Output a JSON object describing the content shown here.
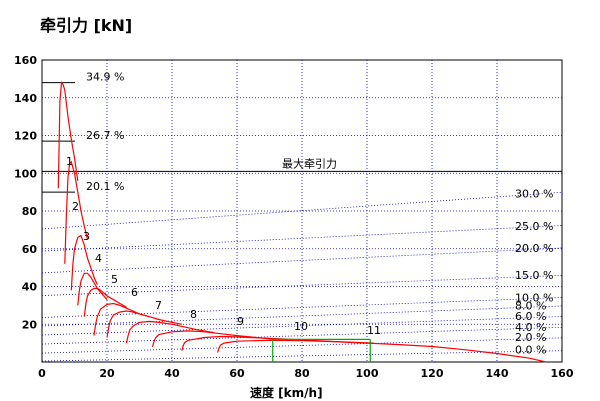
{
  "title": "牵引力 [kN]",
  "chart_data": {
    "type": "line",
    "title": "牵引力 [kN]",
    "xlabel": "速度 [km/h]",
    "ylabel": "",
    "xlim": [
      0,
      160
    ],
    "ylim": [
      0,
      160
    ],
    "x_ticks": [
      0,
      20,
      40,
      60,
      80,
      100,
      120,
      140,
      160
    ],
    "y_ticks": [
      20,
      40,
      60,
      80,
      100,
      120,
      140,
      160
    ],
    "grid": true,
    "grid_color": "#0000cc",
    "curve_color": "#ff0000",
    "green_color": "#00aa00",
    "max_traction": {
      "label": "最大牵引力",
      "value": 101
    },
    "slope_lines": [
      {
        "label": "30.0 %",
        "y_at_0": 70.5,
        "y_at_160": 89.9
      },
      {
        "label": "25.0 %",
        "y_at_0": 58.8,
        "y_at_160": 72.3
      },
      {
        "label": "20.0 %",
        "y_at_0": 47.2,
        "y_at_160": 60.4
      },
      {
        "label": "15.0 %",
        "y_at_0": 35.2,
        "y_at_160": 45.9
      },
      {
        "label": "10.0 %",
        "y_at_0": 23.6,
        "y_at_160": 34.2
      },
      {
        "label": "8.0 %",
        "y_at_0": 19.1,
        "y_at_160": 29.7
      },
      {
        "label": "6.0 %",
        "y_at_0": 14.3,
        "y_at_160": 24.1
      },
      {
        "label": "4.0 %",
        "y_at_0": 9.5,
        "y_at_160": 18.4
      },
      {
        "label": "2.0 %",
        "y_at_0": 4.7,
        "y_at_160": 12.8
      },
      {
        "label": "0.0 %",
        "y_at_0": 0.5,
        "y_at_160": 6.0
      }
    ],
    "startup_markers": [
      {
        "label": "34.9 %",
        "y": 148
      },
      {
        "label": "26.7 %",
        "y": 117
      },
      {
        "label": "20.1 %",
        "y": 90
      }
    ],
    "series": [
      {
        "name": "1",
        "x": [
          5.0,
          5.5,
          6.0,
          6.5,
          7.0,
          8.0,
          9.0,
          10.0,
          11.0
        ],
        "y": [
          92,
          138,
          148,
          147,
          144,
          130,
          118,
          108,
          96
        ]
      },
      {
        "name": "2",
        "x": [
          7.0,
          7.5,
          8.0,
          8.5,
          9.0,
          10.0,
          11.0,
          12.0,
          13.0,
          14.0
        ],
        "y": [
          52,
          78,
          98,
          105,
          106,
          100,
          90,
          80,
          72,
          65
        ]
      },
      {
        "name": "3",
        "x": [
          9.0,
          9.5,
          10.0,
          11.0,
          12.0,
          13.0,
          14.0,
          15.0,
          16.0,
          17.0
        ],
        "y": [
          38,
          52,
          60,
          66,
          67,
          62,
          55,
          50,
          45,
          41
        ]
      },
      {
        "name": "4",
        "x": [
          11.0,
          11.5,
          12.0,
          13.0,
          14.0,
          15.0,
          16.0,
          17.0,
          18.0,
          19.0,
          20.0
        ],
        "y": [
          30,
          38,
          43,
          47,
          47,
          45,
          42,
          39,
          37,
          35,
          33
        ]
      },
      {
        "name": "5",
        "x": [
          13.0,
          13.5,
          14.0,
          15.0,
          16.0,
          17.0,
          18.0,
          20.0,
          22.0,
          24.0,
          26.0
        ],
        "y": [
          24,
          31,
          35,
          38,
          39,
          39,
          38,
          35,
          33,
          31,
          29
        ]
      },
      {
        "name": "6",
        "x": [
          16.0,
          16.5,
          17.0,
          18.0,
          20.0,
          22.0,
          24.0,
          26.0,
          28.0,
          30.0,
          33.0
        ],
        "y": [
          14,
          20,
          24,
          28,
          30.5,
          31,
          30,
          28.5,
          27,
          25.5,
          24
        ]
      },
      {
        "name": "7",
        "x": [
          20.0,
          20.5,
          21.0,
          22.0,
          24.0,
          26.0,
          28.0,
          30.0,
          33.0,
          36.0,
          40.0,
          43.0
        ],
        "y": [
          13,
          18,
          22,
          25,
          26.5,
          27,
          26.5,
          25.5,
          24,
          22.5,
          21,
          20
        ]
      },
      {
        "name": "8",
        "x": [
          26.0,
          26.5,
          27.0,
          28.0,
          30.0,
          33.0,
          36.0,
          40.0,
          44.0,
          48.0,
          53.0
        ],
        "y": [
          10,
          14,
          17,
          19,
          21,
          21.5,
          21,
          20,
          18.5,
          17,
          15.5
        ]
      },
      {
        "name": "9",
        "x": [
          34.0,
          34.5,
          35.0,
          36.0,
          40.0,
          45.0,
          50.0,
          55.0,
          60.0,
          66.0,
          72.0
        ],
        "y": [
          8,
          11,
          13,
          14.5,
          16,
          16.5,
          16,
          15,
          14,
          13,
          12
        ]
      },
      {
        "name": "10",
        "x": [
          43.0,
          43.5,
          44.0,
          45.0,
          50.0,
          55.0,
          60.0,
          70.0,
          80.0,
          90.0,
          102.0
        ],
        "y": [
          6,
          9,
          10.5,
          11.5,
          13,
          13.5,
          13.3,
          12.5,
          11.7,
          10.8,
          10
        ]
      },
      {
        "name": "11",
        "x": [
          54.0,
          54.5,
          55.0,
          56.0,
          60.0,
          70.0,
          80.0,
          90.0,
          100.0,
          110.0,
          120.0,
          130.0,
          140.0,
          150.0,
          155.0
        ],
        "y": [
          5,
          7.5,
          9,
          10,
          11,
          11.5,
          11.3,
          10.8,
          10,
          9.2,
          8.2,
          6.5,
          4.5,
          2,
          0
        ]
      }
    ],
    "green_segments": [
      {
        "x": [
          71,
          71
        ],
        "y": [
          0,
          12
        ]
      },
      {
        "x": [
          71,
          101
        ],
        "y": [
          12,
          12
        ]
      },
      {
        "x": [
          101,
          101
        ],
        "y": [
          0,
          12
        ]
      }
    ]
  }
}
